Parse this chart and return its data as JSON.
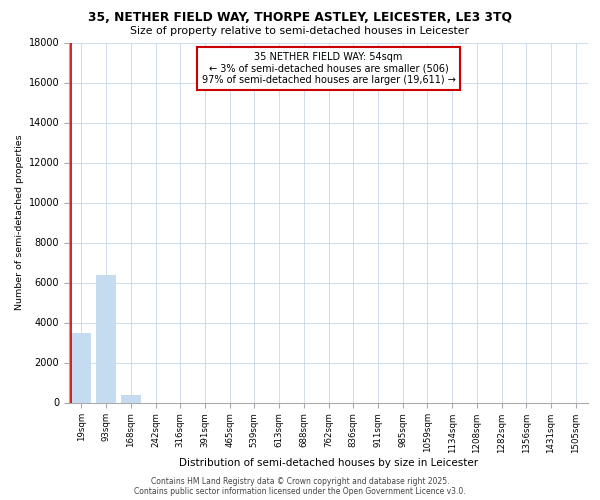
{
  "title1": "35, NETHER FIELD WAY, THORPE ASTLEY, LEICESTER, LE3 3TQ",
  "title2": "Size of property relative to semi-detached houses in Leicester",
  "xlabel": "Distribution of semi-detached houses by size in Leicester",
  "ylabel": "Number of semi-detached properties",
  "annotation_title": "35 NETHER FIELD WAY: 54sqm",
  "annotation_line1": "← 3% of semi-detached houses are smaller (506)",
  "annotation_line2": "97% of semi-detached houses are larger (19,611) →",
  "footer1": "Contains HM Land Registry data © Crown copyright and database right 2025.",
  "footer2": "Contains public sector information licensed under the Open Government Licence v3.0.",
  "categories": [
    "19sqm",
    "93sqm",
    "168sqm",
    "242sqm",
    "316sqm",
    "391sqm",
    "465sqm",
    "539sqm",
    "613sqm",
    "688sqm",
    "762sqm",
    "836sqm",
    "911sqm",
    "985sqm",
    "1059sqm",
    "1134sqm",
    "1208sqm",
    "1282sqm",
    "1356sqm",
    "1431sqm",
    "1505sqm"
  ],
  "values": [
    3500,
    6400,
    400,
    0,
    0,
    0,
    0,
    0,
    0,
    0,
    0,
    0,
    0,
    0,
    0,
    0,
    0,
    0,
    0,
    0,
    0
  ],
  "bar_color": "#c5dcf0",
  "ylim": [
    0,
    18000
  ],
  "yticks": [
    0,
    2000,
    4000,
    6000,
    8000,
    10000,
    12000,
    14000,
    16000,
    18000
  ],
  "annotation_box_edge": "#cc0000",
  "grid_color": "#c8d8e8",
  "vline_color": "#cc0000",
  "vline_x_offset": -0.5
}
